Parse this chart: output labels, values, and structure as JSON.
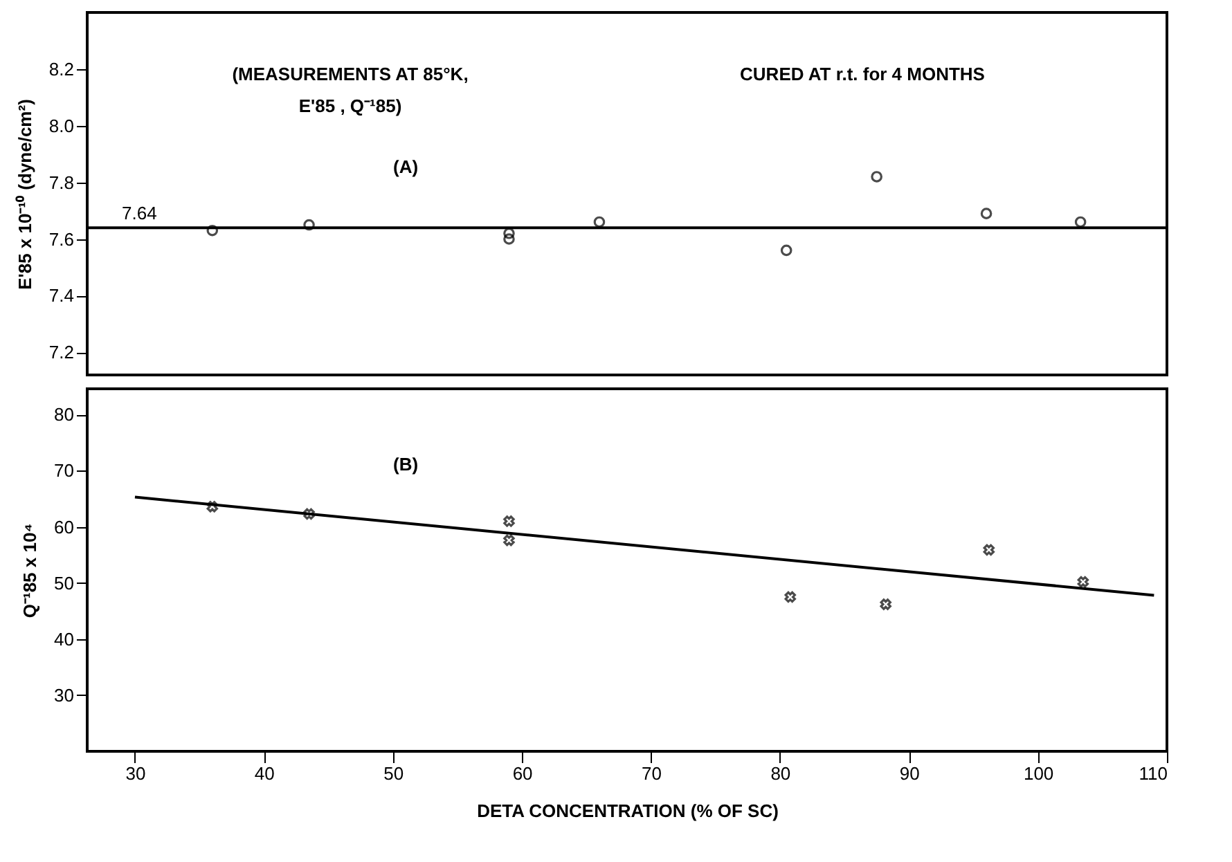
{
  "chart_data": [
    {
      "type": "scatter",
      "ylabel": "E'85 x 10⁻¹⁰ (dyne/cm²)",
      "xlim": [
        26.3,
        110
      ],
      "xticks": [
        30,
        40,
        50,
        60,
        70,
        80,
        90,
        100,
        110
      ],
      "ylim": [
        7.12,
        8.4
      ],
      "yticks": [
        7.2,
        7.4,
        7.6,
        7.8,
        {
          "value": 8,
          "label": "8.0"
        },
        8.2
      ],
      "tick_labels": "y",
      "marker": "circle",
      "series": [
        {
          "color": "#000000",
          "x": [
            36,
            43.5,
            59,
            59,
            66,
            80.5,
            87.5,
            96,
            103.3
          ],
          "values": [
            7.63,
            7.65,
            7.62,
            7.6,
            7.66,
            7.56,
            7.82,
            7.69,
            7.66
          ]
        }
      ],
      "ref_lines": [
        {
          "axis": "y",
          "value": 7.64,
          "label": "7.64"
        }
      ],
      "annotations": [
        "(MEASUREMENTS AT 85°K,",
        "E'85 , Q⁻¹85)",
        "CURED AT r.t. for 4 MONTHS",
        "(A)"
      ]
    },
    {
      "type": "scatter",
      "xlabel": "DETA CONCENTRATION (% OF SC)",
      "ylabel": "Q⁻¹85 x 10⁴",
      "xlim": [
        26.3,
        110
      ],
      "xticks": [
        30,
        40,
        50,
        60,
        70,
        80,
        90,
        100,
        110
      ],
      "ylim": [
        20,
        84.6
      ],
      "yticks": [
        30,
        40,
        50,
        60,
        70,
        80
      ],
      "marker": "cross",
      "series": [
        {
          "color": "#000000",
          "x": [
            36,
            43.5,
            59,
            59,
            80.8,
            88.2,
            96.2,
            103.5
          ],
          "values": [
            63.6,
            62.3,
            61,
            57.6,
            47.5,
            46.2,
            55.9,
            50.2
          ]
        },
        {
          "type": "line",
          "marker": "none",
          "color": "#000000",
          "x": [
            30,
            109
          ],
          "values": [
            65.3,
            47.8
          ]
        }
      ],
      "annotations": [
        "(B)"
      ]
    }
  ]
}
